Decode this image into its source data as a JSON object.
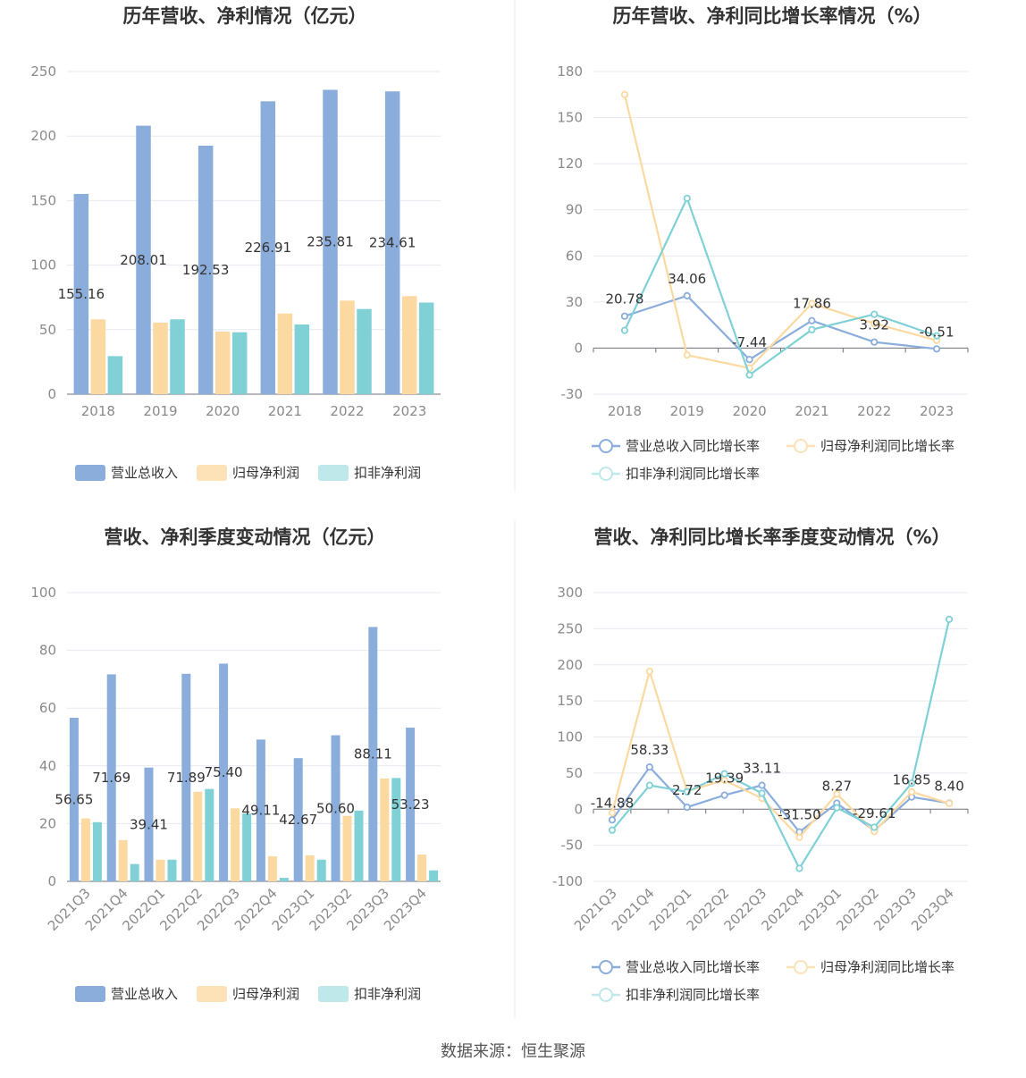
{
  "footer": {
    "source": "数据来源：恒生聚源"
  },
  "colors": {
    "revenue": "#8aaddc",
    "net_profit": "#fcd9a0",
    "deducted": "#7fd1d6",
    "revenue_legend": "#8aaddc",
    "net_profit_legend": "#fde2b8",
    "deducted_legend": "#bfe8ea"
  },
  "chart_data": [
    {
      "type": "bar",
      "title": "历年营收、净利情况（亿元）",
      "categories": [
        "2018",
        "2019",
        "2020",
        "2021",
        "2022",
        "2023"
      ],
      "ylim": [
        0,
        250
      ],
      "yticks": [
        "0",
        "50",
        "100",
        "150",
        "200",
        "250"
      ],
      "series": [
        {
          "name": "营业总收入",
          "values": [
            155.16,
            208.01,
            192.53,
            226.91,
            235.81,
            234.61
          ],
          "labels": [
            "155.16",
            "208.01",
            "192.53",
            "226.91",
            "235.81",
            "234.61"
          ]
        },
        {
          "name": "归母净利润",
          "values": [
            58,
            55.5,
            48.5,
            62.5,
            72.5,
            76
          ]
        },
        {
          "name": "扣非净利润",
          "values": [
            29.5,
            58,
            48,
            54,
            66,
            71
          ]
        }
      ],
      "grid": true,
      "legend": "bottom"
    },
    {
      "type": "line",
      "title": "历年营收、净利同比增长率情况（%）",
      "categories": [
        "2018",
        "2019",
        "2020",
        "2021",
        "2022",
        "2023"
      ],
      "ylim": [
        -30,
        180
      ],
      "yticks": [
        "-30",
        "0",
        "30",
        "60",
        "90",
        "120",
        "150",
        "180"
      ],
      "series": [
        {
          "name": "营业总收入同比增长率",
          "values": [
            20.78,
            34.06,
            -7.44,
            17.86,
            3.92,
            -0.51
          ],
          "labels": [
            "20.78",
            "34.06",
            "-7.44",
            "17.86",
            "3.92",
            "-0.51"
          ]
        },
        {
          "name": "归母净利润同比增长率",
          "values": [
            165,
            -4.5,
            -13,
            29,
            16,
            5
          ]
        },
        {
          "name": "扣非净利润同比增长率",
          "values": [
            11.5,
            97.5,
            -17.5,
            12,
            22,
            8
          ]
        }
      ],
      "grid": true,
      "legend": "bottom"
    },
    {
      "type": "bar",
      "title": "营收、净利季度变动情况（亿元）",
      "categories": [
        "2021Q3",
        "2021Q4",
        "2022Q1",
        "2022Q2",
        "2022Q3",
        "2022Q4",
        "2023Q1",
        "2023Q2",
        "2023Q3",
        "2023Q4"
      ],
      "ylim": [
        0,
        100
      ],
      "yticks": [
        "0",
        "20",
        "40",
        "60",
        "80",
        "100"
      ],
      "series": [
        {
          "name": "营业总收入",
          "values": [
            56.65,
            71.69,
            39.41,
            71.89,
            75.4,
            49.11,
            42.67,
            50.6,
            88.11,
            53.23
          ],
          "labels": [
            "56.65",
            "71.69",
            "39.41",
            "71.89",
            "75.40",
            "49.11",
            "42.67",
            "50.60",
            "88.11",
            "53.23"
          ]
        },
        {
          "name": "归母净利润",
          "values": [
            21.8,
            14.3,
            7.5,
            31,
            25.3,
            8.7,
            9,
            22.7,
            35.6,
            9.3
          ]
        },
        {
          "name": "扣非净利润",
          "values": [
            20.5,
            6,
            7.5,
            32,
            23.5,
            1.2,
            7.5,
            24.5,
            35.8,
            3.8
          ]
        }
      ],
      "grid": true,
      "legend": "bottom"
    },
    {
      "type": "line",
      "title": "营收、净利同比增长率季度变动情况（%）",
      "categories": [
        "2021Q3",
        "2021Q4",
        "2022Q1",
        "2022Q2",
        "2022Q3",
        "2022Q4",
        "2023Q1",
        "2023Q2",
        "2023Q3",
        "2023Q4"
      ],
      "ylim": [
        -100,
        300
      ],
      "yticks": [
        "-100",
        "-50",
        "0",
        "50",
        "100",
        "150",
        "200",
        "250",
        "300"
      ],
      "series": [
        {
          "name": "营业总收入同比增长率",
          "values": [
            -14.88,
            58.33,
            2.72,
            19.39,
            33.11,
            -31.5,
            8.27,
            -29.61,
            16.85,
            8.4
          ],
          "labels": [
            "-14.88",
            "58.33",
            "2.72",
            "19.39",
            "33.11",
            "-31.50",
            "8.27",
            "-29.61",
            "16.85",
            "8.40"
          ]
        },
        {
          "name": "归母净利润同比增长率",
          "values": [
            -5,
            191,
            25,
            40,
            15,
            -39,
            21,
            -31,
            24,
            8
          ]
        },
        {
          "name": "扣非净利润同比增长率",
          "values": [
            -29,
            33,
            24,
            49,
            22,
            -82,
            2,
            -25,
            36,
            263
          ]
        }
      ],
      "grid": true,
      "legend": "bottom"
    }
  ]
}
